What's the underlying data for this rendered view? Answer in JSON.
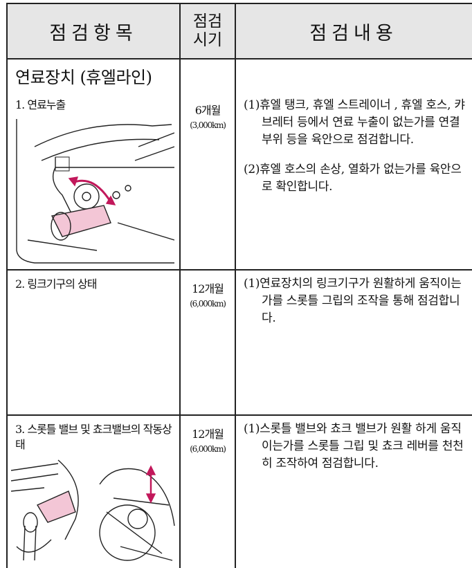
{
  "table": {
    "header": [
      "점검항목",
      [
        "점검",
        "시기"
      ],
      "점검내용"
    ],
    "section": "연료장치 (휴엘라인)",
    "rows": [
      {
        "item": "1. 연료누출",
        "period": "6개월",
        "distance": "(3,000km)",
        "contents": [
          "(1)휴엘 탱크, 휴엘 스트레이너 , 휴엘 호스, 캬브레터 등에서 연료 누출이 없는가를 연결 부위 등을 육안으로 점검합니다.",
          "(2)휴엘 호스의 손상, 열화가 없는가를 육안으로 확인합니다."
        ]
      },
      {
        "item": "2. 링크기구의 상태",
        "period": "12개월",
        "distance": "(6,000km)",
        "contents": [
          "(1)연료장치의 링크기구가 원활하게 움직이는가를 스롯틀 그립의 조작을 통해 점검합니다."
        ]
      },
      {
        "item": "3. 스롯틀 밸브 및 쵸크밸브의 작동상태",
        "period": "12개월",
        "distance": "(6,000km)",
        "contents": [
          "(1)스롯틀 밸브와 쵸크 밸브가 원활 하게 움직이는가를 스롯틀 그립 및 쵸크 레버를 천천히 조작하여 점검합니다."
        ]
      }
    ]
  }
}
